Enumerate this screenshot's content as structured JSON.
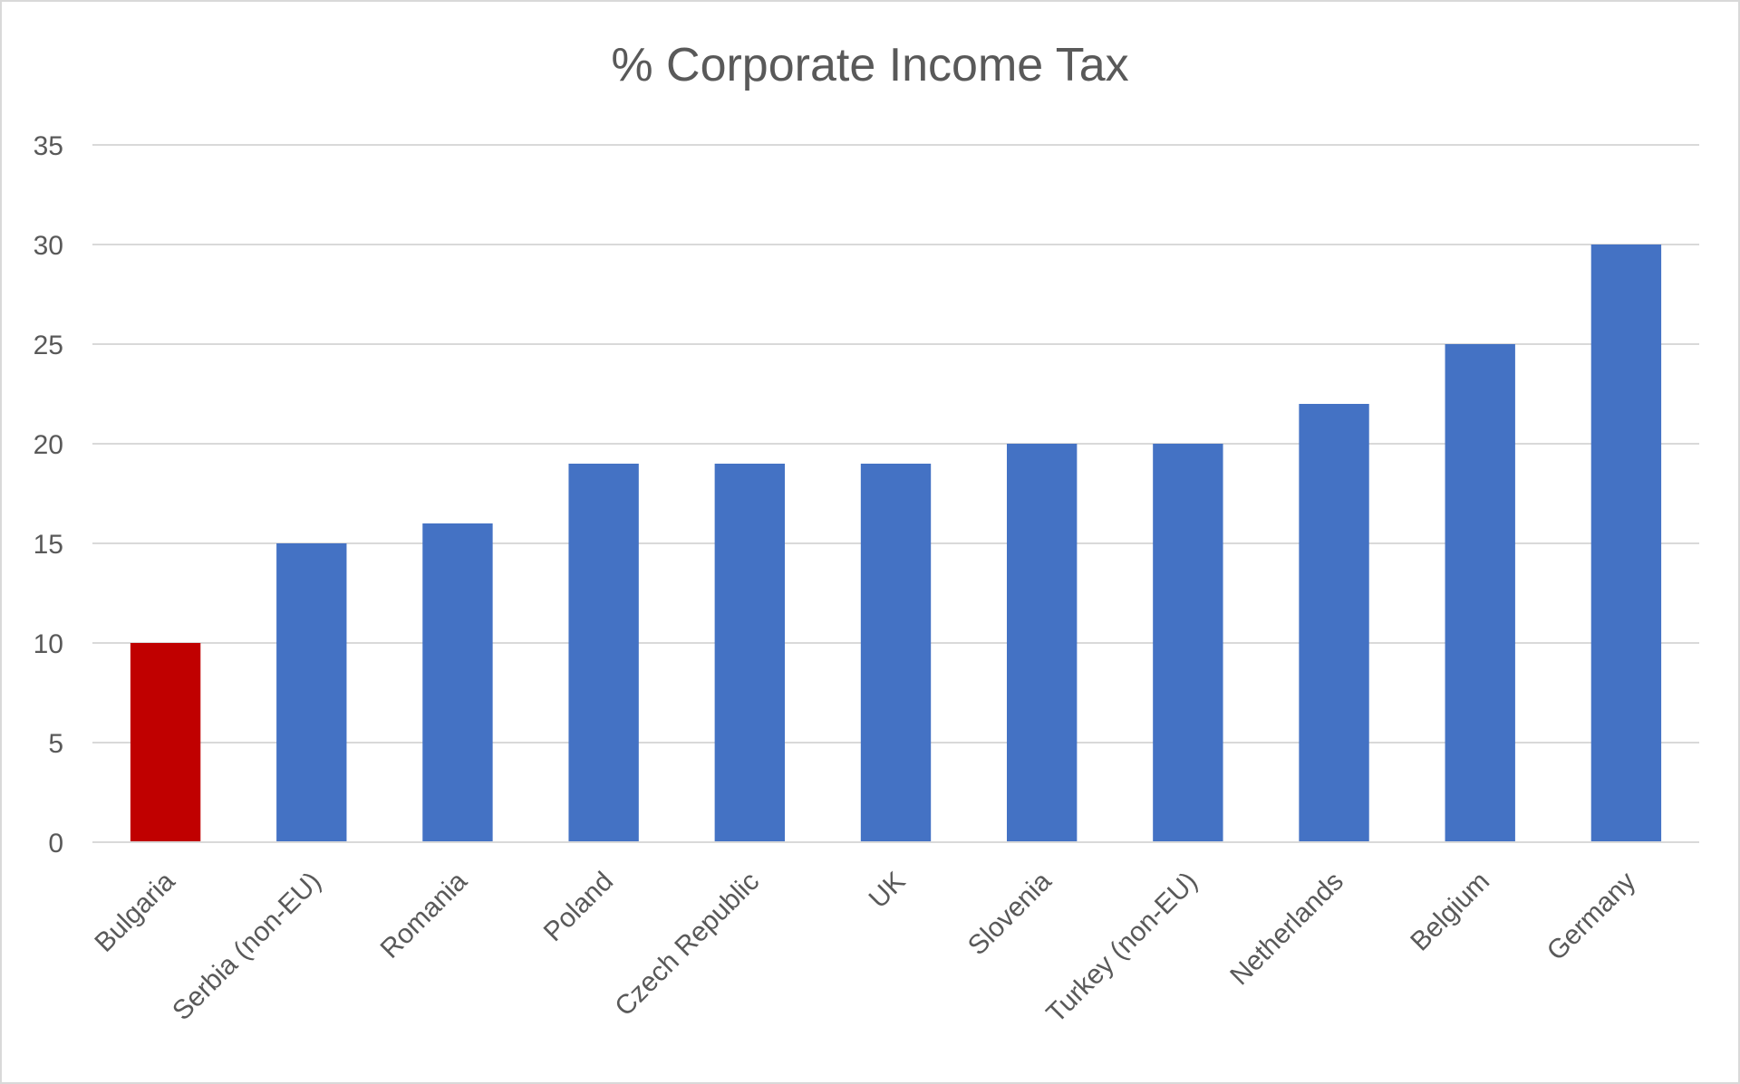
{
  "chart_data": {
    "type": "bar",
    "title": "% Corporate Income Tax",
    "xlabel": "",
    "ylabel": "",
    "categories": [
      "Bulgaria",
      "Serbia (non-EU)",
      "Romania",
      "Poland",
      "Czech Republic",
      "UK",
      "Slovenia",
      "Turkey (non-EU)",
      "Netherlands",
      "Belgium",
      "Germany"
    ],
    "values": [
      10,
      15,
      16,
      19,
      19,
      19,
      20,
      20,
      22,
      25,
      30
    ],
    "bar_colors": [
      "#c00000",
      "#4472c4",
      "#4472c4",
      "#4472c4",
      "#4472c4",
      "#4472c4",
      "#4472c4",
      "#4472c4",
      "#4472c4",
      "#4472c4",
      "#4472c4"
    ],
    "ylim": [
      0,
      35
    ],
    "yticks": [
      0,
      5,
      10,
      15,
      20,
      25,
      30,
      35
    ],
    "grid": true,
    "legend": "none"
  }
}
